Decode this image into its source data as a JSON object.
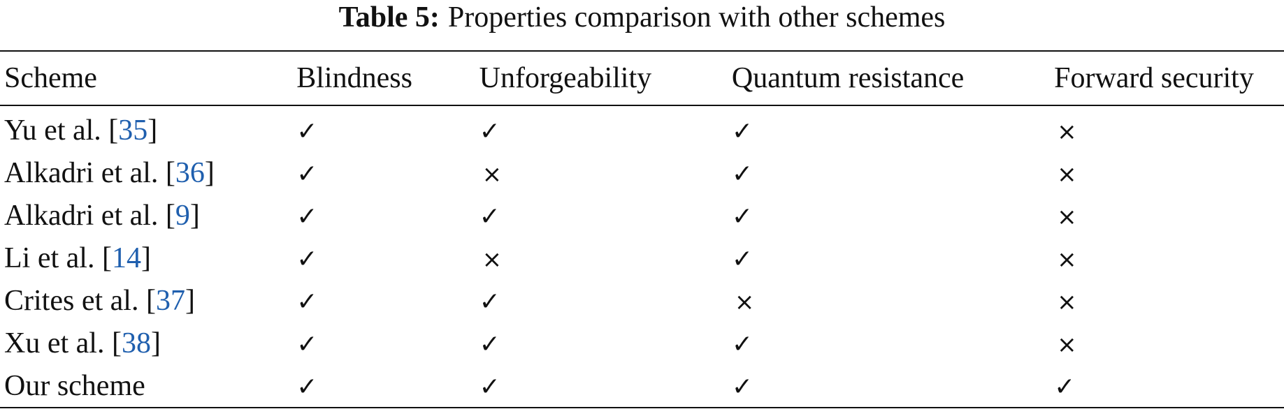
{
  "caption": {
    "label": "Table 5:",
    "text": "Properties comparison with other schemes"
  },
  "table": {
    "columns": [
      "Scheme",
      "Blindness",
      "Unforgeability",
      "Quantum resistance",
      "Forward security"
    ],
    "rows": [
      {
        "name": "Yu et al. [",
        "ref": "35",
        "suffix": "]",
        "marks": [
          "✓",
          "✓",
          "✓",
          "×"
        ]
      },
      {
        "name": "Alkadri et al. [",
        "ref": "36",
        "suffix": "]",
        "marks": [
          "✓",
          "×",
          "✓",
          "×"
        ]
      },
      {
        "name": "Alkadri et al. [",
        "ref": "9",
        "suffix": "]",
        "marks": [
          "✓",
          "✓",
          "✓",
          "×"
        ]
      },
      {
        "name": "Li et al. [",
        "ref": "14",
        "suffix": "]",
        "marks": [
          "✓",
          "×",
          "✓",
          "×"
        ]
      },
      {
        "name": "Crites et al. [",
        "ref": "37",
        "suffix": "]",
        "marks": [
          "✓",
          "✓",
          "×",
          "×"
        ]
      },
      {
        "name": "Xu et al. [",
        "ref": "38",
        "suffix": "]",
        "marks": [
          "✓",
          "✓",
          "✓",
          "×"
        ]
      },
      {
        "name": "Our scheme",
        "ref": "",
        "suffix": "",
        "marks": [
          "✓",
          "✓",
          "✓",
          "✓"
        ]
      }
    ]
  },
  "colors": {
    "text": "#111111",
    "reference_link": "#1f5fae"
  }
}
